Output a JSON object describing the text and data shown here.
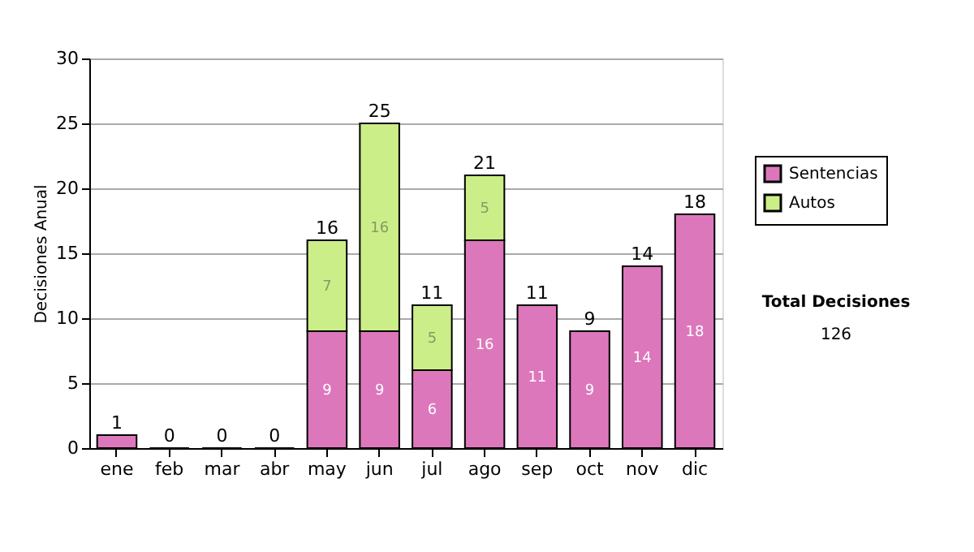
{
  "chart_data": {
    "type": "bar",
    "stacked": true,
    "ylabel": "Decisiones Anual",
    "categories": [
      "ene",
      "feb",
      "mar",
      "abr",
      "may",
      "jun",
      "jul",
      "ago",
      "sep",
      "oct",
      "nov",
      "dic"
    ],
    "series": [
      {
        "name": "Sentencias",
        "color": "#dd77bb",
        "values": [
          1,
          0,
          0,
          0,
          9,
          9,
          6,
          16,
          11,
          9,
          14,
          18
        ],
        "value_labels": [
          null,
          null,
          null,
          null,
          "9",
          "9",
          "6",
          "16",
          "11",
          "9",
          "14",
          "18"
        ]
      },
      {
        "name": "Autos",
        "color": "#ccee88",
        "values": [
          null,
          null,
          null,
          null,
          7,
          16,
          5,
          5,
          null,
          null,
          null,
          null
        ],
        "value_labels": [
          null,
          null,
          null,
          null,
          "7",
          "16",
          "5",
          "5",
          null,
          null,
          null,
          null
        ]
      }
    ],
    "totals": [
      "1",
      "0",
      "0",
      "0",
      "16",
      "25",
      "11",
      "21",
      "11",
      "9",
      "14",
      "18"
    ],
    "ylim": [
      0,
      30
    ],
    "yticks": [
      0,
      5,
      10,
      15,
      20,
      25,
      30
    ],
    "grid": "y",
    "legend": "right",
    "annotations": [
      "Total Decisiones",
      "126"
    ]
  }
}
